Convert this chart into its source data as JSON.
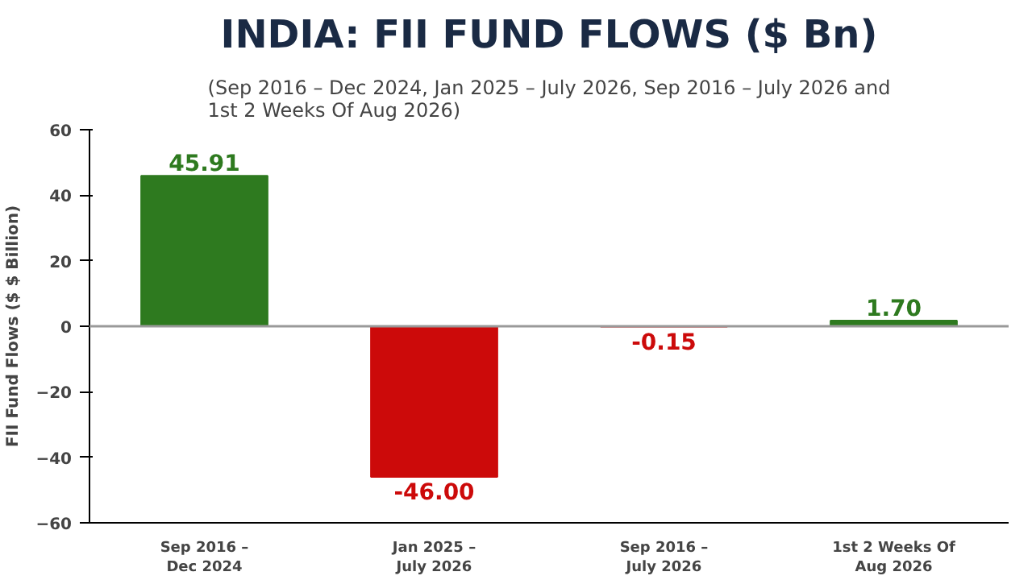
{
  "chart_data": {
    "type": "bar",
    "title": "INDIA: FII FUND FLOWS ($ Bn)",
    "subtitle": "(Sep 2016 – Dec 2024, Jan 2025 – July 2026, Sep 2016 – July 2026 and\n1st 2 Weeks Of Aug 2026)",
    "ylabel": "FII Fund Flows ($ $ Billion)",
    "categories": [
      "Sep 2016 –\nDec 2024",
      "Jan 2025 –\nJuly 2026",
      "Sep 2016 –\nJuly 2026",
      "1st 2 Weeks Of\nAug 2026"
    ],
    "values": [
      45.91,
      -46.0,
      -0.15,
      1.7
    ],
    "colors": [
      "#2e7a1f",
      "#cc0a0a",
      "#cc0a0a",
      "#2e7a1f"
    ],
    "value_labels": [
      "45.91",
      "-46.00",
      "-0.15",
      "1.70"
    ],
    "ylim": [
      -60,
      60
    ],
    "yticks": [
      -60,
      -40,
      -20,
      0,
      20,
      40,
      60
    ],
    "ref_lines": [
      {
        "axis": "y",
        "value": 0,
        "color": "#999999"
      }
    ],
    "grid": false
  }
}
